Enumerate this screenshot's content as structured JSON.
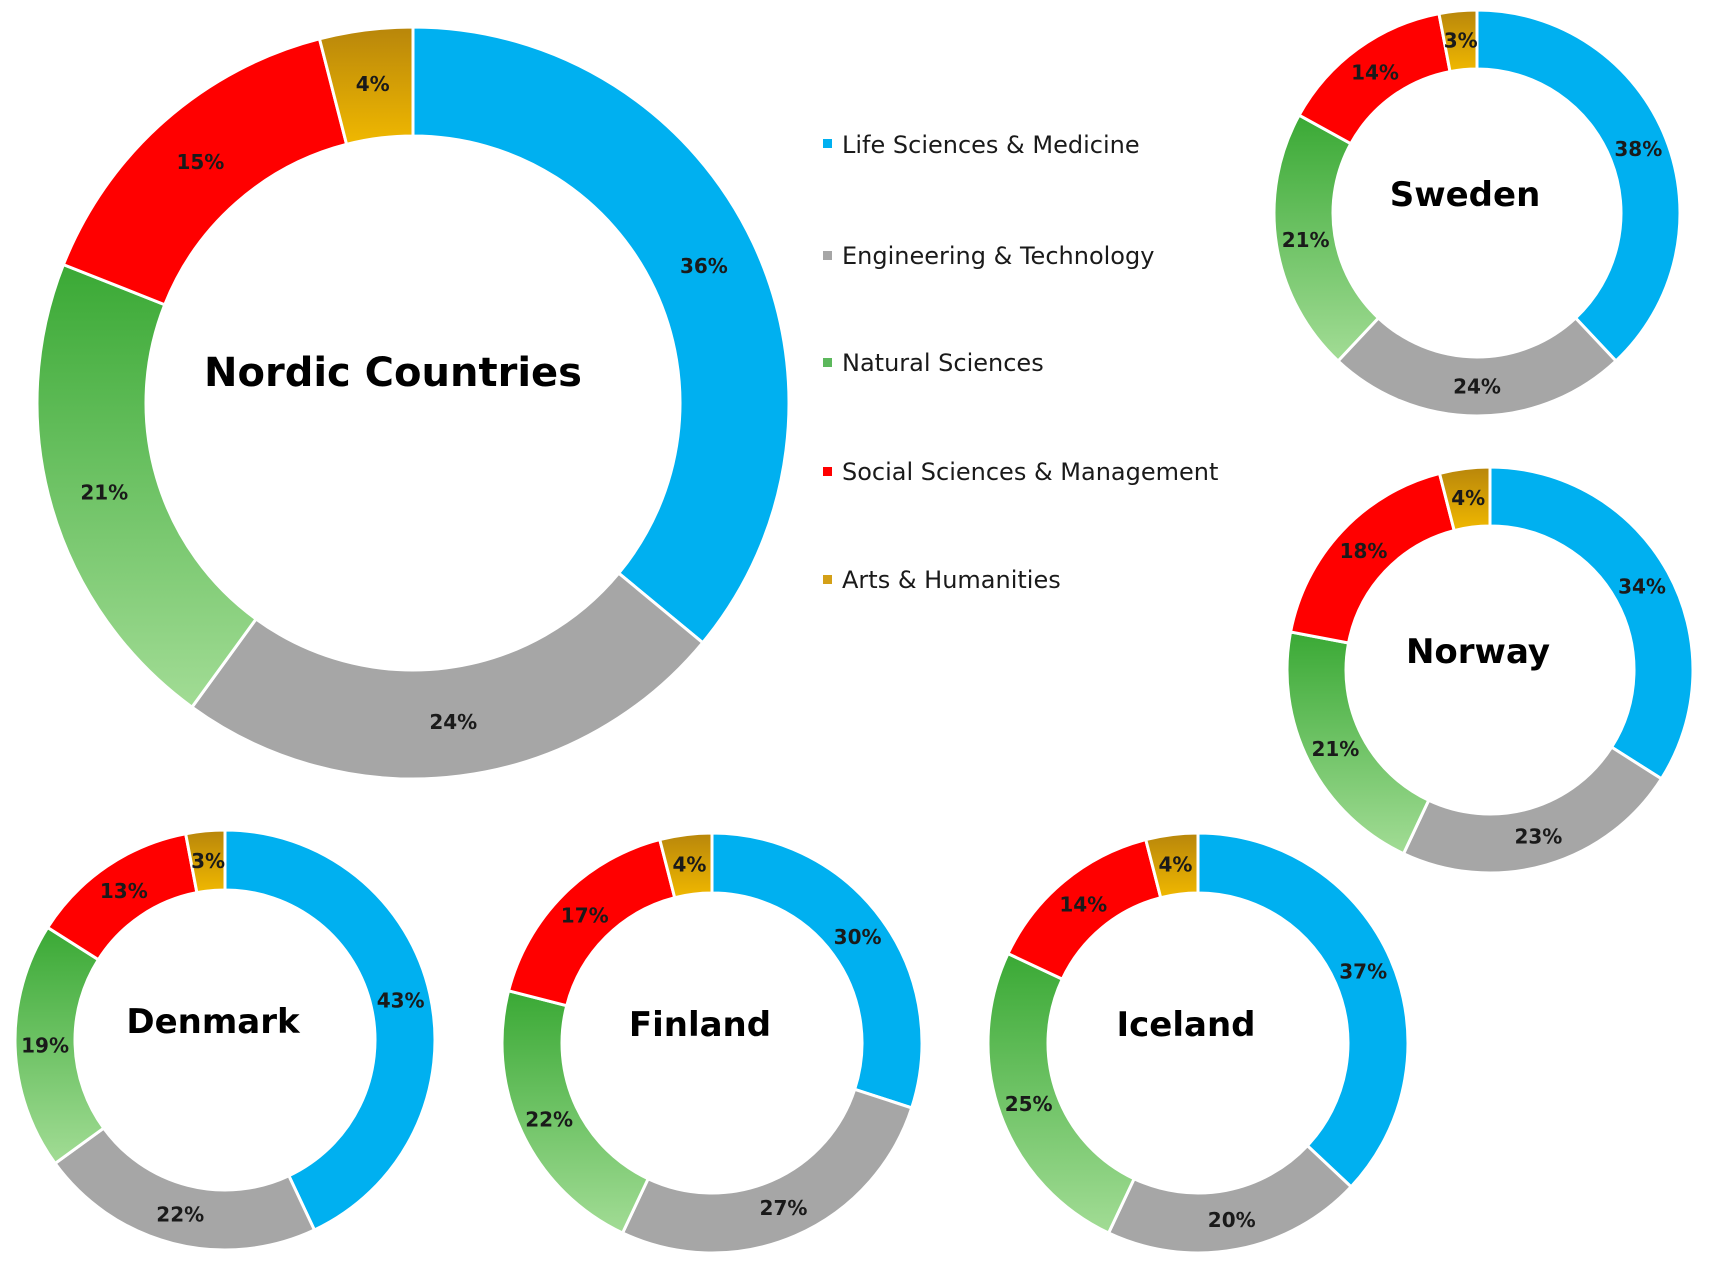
{
  "legend": {
    "items": [
      {
        "label": "Life Sciences & Medicine",
        "color": "#00b0f0"
      },
      {
        "label": "Engineering & Technology",
        "color": "#a6a6a6"
      },
      {
        "label": "Natural Sciences",
        "color": "#5cb85c"
      },
      {
        "label": "Social Sciences & Management",
        "color": "#ff0000"
      },
      {
        "label": "Arts & Humanities",
        "color": "#d4a017"
      }
    ]
  },
  "chart_data": [
    {
      "type": "pie",
      "title": "Nordic Countries",
      "categories": [
        "Life Sciences & Medicine",
        "Engineering & Technology",
        "Natural Sciences",
        "Social Sciences & Management",
        "Arts & Humanities"
      ],
      "values": [
        36,
        24,
        21,
        15,
        4
      ],
      "labels": [
        "36%",
        "24%",
        "21%",
        "15%",
        "4%"
      ]
    },
    {
      "type": "pie",
      "title": "Sweden",
      "categories": [
        "Life Sciences & Medicine",
        "Engineering & Technology",
        "Natural Sciences",
        "Social Sciences & Management",
        "Arts & Humanities"
      ],
      "values": [
        38,
        24,
        21,
        14,
        3
      ],
      "labels": [
        "38%",
        "24%",
        "21%",
        "14%",
        "3%"
      ]
    },
    {
      "type": "pie",
      "title": "Norway",
      "categories": [
        "Life Sciences & Medicine",
        "Engineering & Technology",
        "Natural Sciences",
        "Social Sciences & Management",
        "Arts & Humanities"
      ],
      "values": [
        34,
        23,
        21,
        18,
        4
      ],
      "labels": [
        "34%",
        "23%",
        "21%",
        "18%",
        "4%"
      ]
    },
    {
      "type": "pie",
      "title": "Denmark",
      "categories": [
        "Life Sciences & Medicine",
        "Engineering & Technology",
        "Natural Sciences",
        "Social Sciences & Management",
        "Arts & Humanities"
      ],
      "values": [
        43,
        22,
        19,
        13,
        3
      ],
      "labels": [
        "43%",
        "22%",
        "19%",
        "13%",
        "3%"
      ]
    },
    {
      "type": "pie",
      "title": "Finland",
      "categories": [
        "Life Sciences & Medicine",
        "Engineering & Technology",
        "Natural Sciences",
        "Social Sciences & Management",
        "Arts & Humanities"
      ],
      "values": [
        30,
        27,
        22,
        17,
        4
      ],
      "labels": [
        "30%",
        "27%",
        "22%",
        "17%",
        "4%"
      ]
    },
    {
      "type": "pie",
      "title": "Iceland",
      "categories": [
        "Life Sciences & Medicine",
        "Engineering & Technology",
        "Natural Sciences",
        "Social Sciences & Management",
        "Arts & Humanities"
      ],
      "values": [
        37,
        20,
        25,
        14,
        4
      ],
      "labels": [
        "37%",
        "20%",
        "25%",
        "14%",
        "4%"
      ]
    }
  ]
}
